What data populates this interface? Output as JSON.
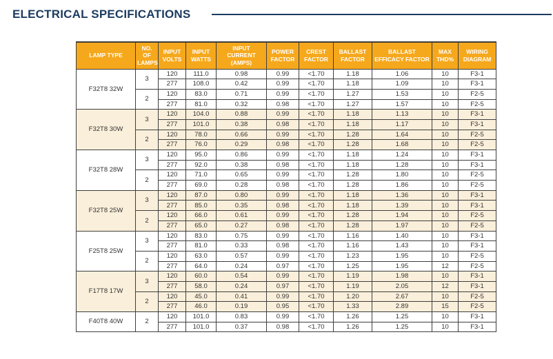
{
  "page_title": "ELECTRICAL SPECIFICATIONS",
  "colors": {
    "title_navy": "#1b3b5f",
    "header_orange": "#f6a81c",
    "header_text": "#ffffff",
    "shaded_row_bg": "#faefda",
    "grid_border": "#3d3d3d"
  },
  "table": {
    "columns": [
      "LAMP TYPE",
      "NO. OF LAMPS",
      "INPUT VOLTS",
      "INPUT WATTS",
      "INPUT CURRENT (AMPS)",
      "POWER FACTOR",
      "CREST FACTOR",
      "BALLAST FACTOR",
      "BALLAST EFFICACY FACTOR",
      "MAX THD%",
      "WIRING DIAGRAM"
    ],
    "groups": [
      {
        "lamp_type": "F32T8 32W",
        "shaded": false,
        "subgroups": [
          {
            "lamps": "3",
            "rows": [
              [
                "120",
                "111.0",
                "0.98",
                "0.99",
                "<1.70",
                "1.18",
                "1.06",
                "10",
                "F3-1"
              ],
              [
                "277",
                "108.0",
                "0.42",
                "0.99",
                "<1.70",
                "1.18",
                "1.09",
                "10",
                "F3-1"
              ]
            ]
          },
          {
            "lamps": "2",
            "rows": [
              [
                "120",
                "83.0",
                "0.71",
                "0.99",
                "<1.70",
                "1.27",
                "1.53",
                "10",
                "F2-5"
              ],
              [
                "277",
                "81.0",
                "0.32",
                "0.98",
                "<1.70",
                "1.27",
                "1.57",
                "10",
                "F2-5"
              ]
            ]
          }
        ]
      },
      {
        "lamp_type": "F32T8 30W",
        "shaded": true,
        "subgroups": [
          {
            "lamps": "3",
            "rows": [
              [
                "120",
                "104.0",
                "0.88",
                "0.99",
                "<1.70",
                "1.18",
                "1.13",
                "10",
                "F3-1"
              ],
              [
                "277",
                "101.0",
                "0.38",
                "0.98",
                "<1.70",
                "1.18",
                "1.17",
                "10",
                "F3-1"
              ]
            ]
          },
          {
            "lamps": "2",
            "rows": [
              [
                "120",
                "78.0",
                "0.66",
                "0.99",
                "<1.70",
                "1.28",
                "1.64",
                "10",
                "F2-5"
              ],
              [
                "277",
                "76.0",
                "0.29",
                "0.98",
                "<1.70",
                "1.28",
                "1.68",
                "10",
                "F2-5"
              ]
            ]
          }
        ]
      },
      {
        "lamp_type": "F32T8 28W",
        "shaded": false,
        "subgroups": [
          {
            "lamps": "3",
            "rows": [
              [
                "120",
                "95.0",
                "0.86",
                "0.99",
                "<1.70",
                "1.18",
                "1.24",
                "10",
                "F3-1"
              ],
              [
                "277",
                "92.0",
                "0.38",
                "0.98",
                "<1.70",
                "1.18",
                "1.28",
                "10",
                "F3-1"
              ]
            ]
          },
          {
            "lamps": "2",
            "rows": [
              [
                "120",
                "71.0",
                "0.65",
                "0.99",
                "<1.70",
                "1.28",
                "1.80",
                "10",
                "F2-5"
              ],
              [
                "277",
                "69.0",
                "0.28",
                "0.98",
                "<1.70",
                "1.28",
                "1.86",
                "10",
                "F2-5"
              ]
            ]
          }
        ]
      },
      {
        "lamp_type": "F32T8 25W",
        "shaded": true,
        "subgroups": [
          {
            "lamps": "3",
            "rows": [
              [
                "120",
                "87.0",
                "0.80",
                "0.99",
                "<1.70",
                "1.18",
                "1.36",
                "10",
                "F3-1"
              ],
              [
                "277",
                "85.0",
                "0.35",
                "0.98",
                "<1.70",
                "1.18",
                "1.39",
                "10",
                "F3-1"
              ]
            ]
          },
          {
            "lamps": "2",
            "rows": [
              [
                "120",
                "66.0",
                "0.61",
                "0.99",
                "<1.70",
                "1.28",
                "1.94",
                "10",
                "F2-5"
              ],
              [
                "277",
                "65.0",
                "0.27",
                "0.98",
                "<1.70",
                "1.28",
                "1.97",
                "10",
                "F2-5"
              ]
            ]
          }
        ]
      },
      {
        "lamp_type": "F25T8 25W",
        "shaded": false,
        "subgroups": [
          {
            "lamps": "3",
            "rows": [
              [
                "120",
                "83.0",
                "0.75",
                "0.99",
                "<1.70",
                "1.16",
                "1.40",
                "10",
                "F3-1"
              ],
              [
                "277",
                "81.0",
                "0.33",
                "0.98",
                "<1.70",
                "1.16",
                "1.43",
                "10",
                "F3-1"
              ]
            ]
          },
          {
            "lamps": "2",
            "rows": [
              [
                "120",
                "63.0",
                "0.57",
                "0.99",
                "<1.70",
                "1.23",
                "1.95",
                "10",
                "F2-5"
              ],
              [
                "277",
                "64.0",
                "0.24",
                "0.97",
                "<1.70",
                "1.25",
                "1.95",
                "12",
                "F2-5"
              ]
            ]
          }
        ]
      },
      {
        "lamp_type": "F17T8 17W",
        "shaded": true,
        "subgroups": [
          {
            "lamps": "3",
            "rows": [
              [
                "120",
                "60.0",
                "0.54",
                "0.99",
                "<1.70",
                "1.19",
                "1.98",
                "10",
                "F3-1"
              ],
              [
                "277",
                "58.0",
                "0.24",
                "0.97",
                "<1.70",
                "1.19",
                "2.05",
                "12",
                "F3-1"
              ]
            ]
          },
          {
            "lamps": "2",
            "rows": [
              [
                "120",
                "45.0",
                "0.41",
                "0.99",
                "<1.70",
                "1.20",
                "2.67",
                "10",
                "F2-5"
              ],
              [
                "277",
                "46.0",
                "0.19",
                "0.95",
                "<1.70",
                "1.33",
                "2.89",
                "15",
                "F2-5"
              ]
            ]
          }
        ]
      },
      {
        "lamp_type": "F40T8  40W",
        "shaded": false,
        "subgroups": [
          {
            "lamps": "2",
            "rows": [
              [
                "120",
                "101.0",
                "0.83",
                "0.99",
                "<1.70",
                "1.26",
                "1.25",
                "10",
                "F3-1"
              ],
              [
                "277",
                "101.0",
                "0.37",
                "0.98",
                "<1.70",
                "1.26",
                "1.25",
                "10",
                "F3-1"
              ]
            ]
          }
        ]
      }
    ]
  }
}
